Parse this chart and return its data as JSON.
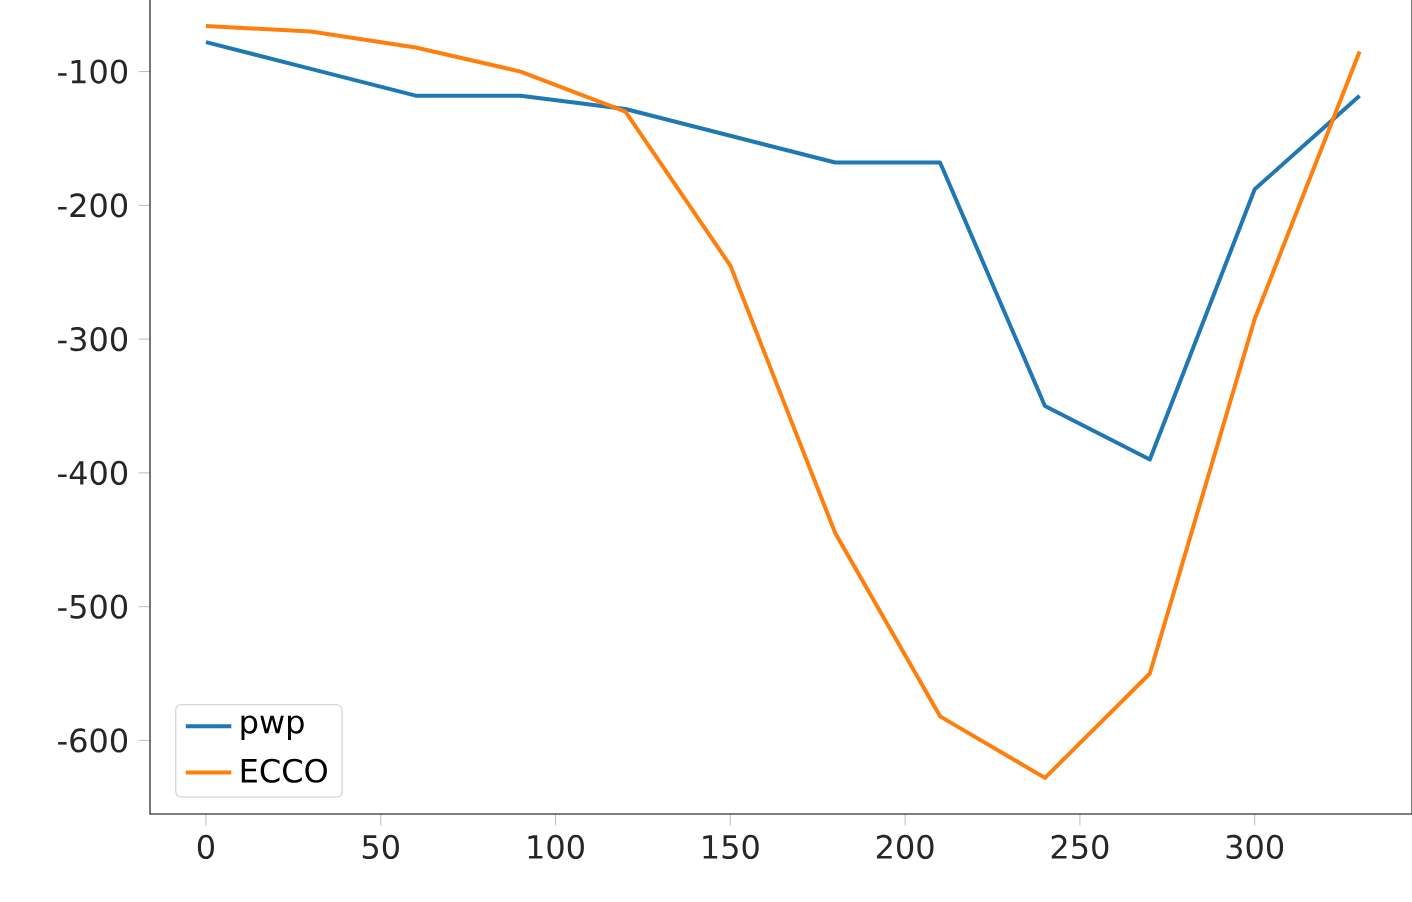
{
  "chart_data": {
    "type": "line",
    "x": [
      0,
      30,
      60,
      90,
      120,
      150,
      180,
      210,
      240,
      270,
      300,
      330
    ],
    "series": [
      {
        "name": "pwp",
        "color": "#1f77b4",
        "values": [
          -78,
          -98,
          -118,
          -118,
          -128,
          -148,
          -168,
          -168,
          -350,
          -390,
          -188,
          -118
        ]
      },
      {
        "name": "ECCO",
        "color": "#ff7f0e",
        "values": [
          -66,
          -70,
          -82,
          -100,
          -130,
          -245,
          -445,
          -582,
          -628,
          -550,
          -285,
          -85
        ]
      }
    ],
    "xlim": [
      -16,
      345
    ],
    "ylim": [
      -655,
      -42
    ],
    "xticks": [
      0,
      50,
      100,
      150,
      200,
      250,
      300
    ],
    "yticks": [
      -600,
      -500,
      -400,
      -300,
      -200,
      -100
    ],
    "legend": "bottom left",
    "grid": false,
    "marker": "none",
    "line_style": "solid"
  }
}
